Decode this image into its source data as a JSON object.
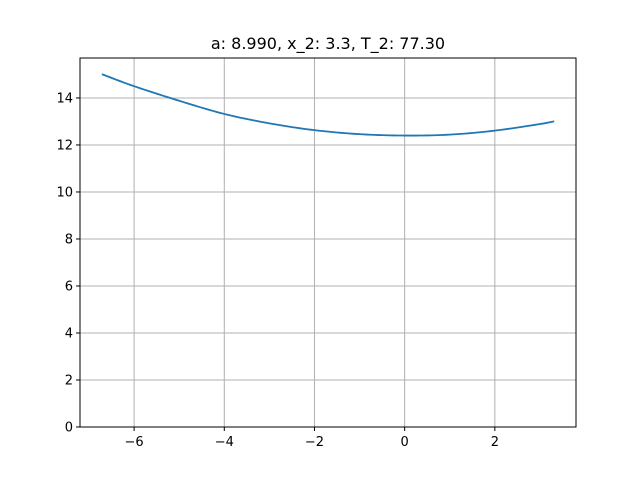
{
  "chart_data": {
    "type": "line",
    "title": "a: 8.990, x_2: 3.3, T_2: 77.30",
    "xlabel": "",
    "ylabel": "",
    "xlim": [
      -7.2,
      3.8
    ],
    "ylim": [
      0,
      15.7
    ],
    "xticks": [
      -6,
      -4,
      -2,
      0,
      2
    ],
    "xtick_labels": [
      "−6",
      "−4",
      "−2",
      "0",
      "2"
    ],
    "yticks": [
      0,
      2,
      4,
      6,
      8,
      10,
      12,
      14
    ],
    "ytick_labels": [
      "0",
      "2",
      "4",
      "6",
      "8",
      "10",
      "12",
      "14"
    ],
    "grid": true,
    "legend": "none",
    "colors": {
      "line": "#1f77b4",
      "grid": "#b0b0b0",
      "axes": "#000000"
    },
    "series": [
      {
        "x": [
          -6.7,
          -6.0,
          -5.0,
          -4.0,
          -3.0,
          -2.0,
          -1.0,
          0.0,
          1.0,
          2.0,
          3.0,
          3.3
        ],
        "values": [
          15.0,
          14.5,
          13.88,
          13.32,
          12.92,
          12.63,
          12.46,
          12.4,
          12.44,
          12.61,
          12.89,
          13.0
        ]
      }
    ]
  }
}
